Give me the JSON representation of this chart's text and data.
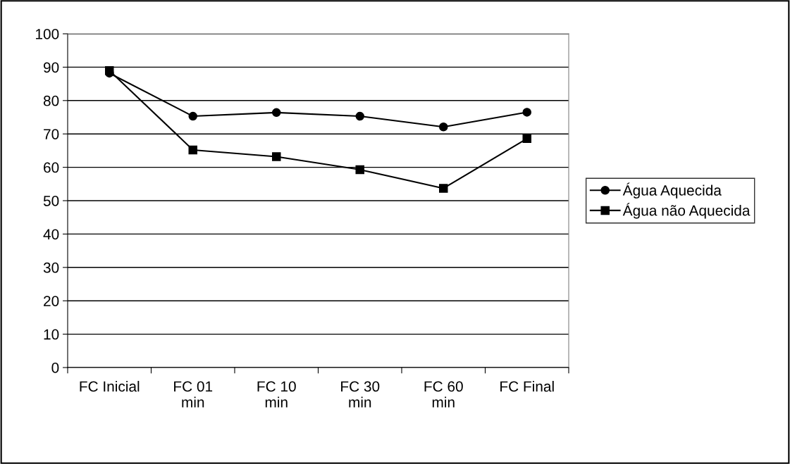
{
  "chart_data": {
    "type": "line",
    "categories": [
      "FC Inicial",
      "FC 01\nmin",
      "FC 10\nmin",
      "FC 30\nmin",
      "FC 60\nmin",
      "FC Final"
    ],
    "series": [
      {
        "name": "Água Aquecida",
        "color": "#000000",
        "marker": "circle",
        "values": [
          88.2,
          75.3,
          76.4,
          75.3,
          72.1,
          76.5
        ]
      },
      {
        "name": "Água não Aquecida",
        "color": "#000000",
        "marker": "square",
        "values": [
          89.0,
          65.2,
          63.2,
          59.3,
          53.7,
          68.6
        ]
      }
    ],
    "ylim": [
      0,
      100
    ],
    "yticks": [
      0,
      10,
      20,
      30,
      40,
      50,
      60,
      70,
      80,
      90,
      100
    ],
    "grid": "y",
    "legend": "right",
    "line_style": "solid"
  }
}
